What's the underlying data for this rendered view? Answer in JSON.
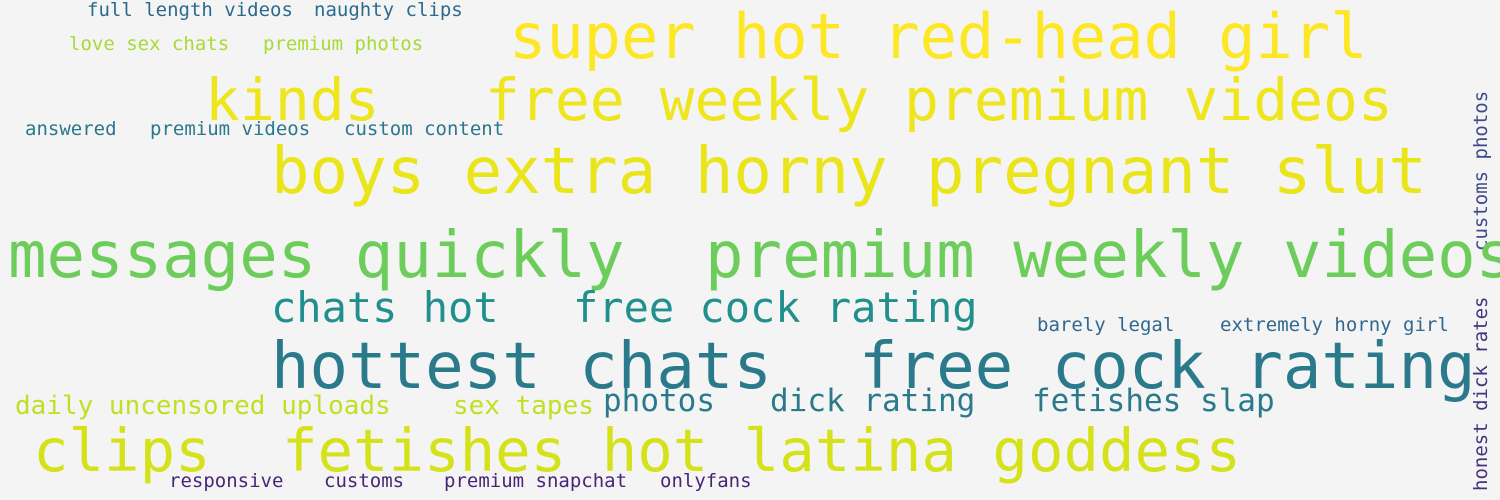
{
  "cloud": {
    "words": [
      {
        "text": "full length videos",
        "color": "#2c6a8d"
      },
      {
        "text": "naughty clips",
        "color": "#2c6a8d"
      },
      {
        "text": "love sex chats",
        "color": "#a6db35"
      },
      {
        "text": "premium photos",
        "color": "#a6db35"
      },
      {
        "text": "super hot red-head girl",
        "color": "#fde725"
      },
      {
        "text": "kinds",
        "color": "#eee51c"
      },
      {
        "text": "free weekly premium videos",
        "color": "#eee51c"
      },
      {
        "text": "answered",
        "color": "#2a778e"
      },
      {
        "text": "premium videos",
        "color": "#2a778e"
      },
      {
        "text": "custom content",
        "color": "#2a778e"
      },
      {
        "text": "boys extra horny pregnant slut",
        "color": "#eae51a"
      },
      {
        "text": "customs photos",
        "color": "#3e4a89"
      },
      {
        "text": "messages quickly",
        "color": "#6ccd5a"
      },
      {
        "text": "premium weekly videos",
        "color": "#6ccd5a"
      },
      {
        "text": "chats hot",
        "color": "#21908d"
      },
      {
        "text": "free cock rating",
        "color": "#21908d"
      },
      {
        "text": "barely legal",
        "color": "#31688e"
      },
      {
        "text": "extremely horny girl",
        "color": "#31688e"
      },
      {
        "text": "honest dick rates",
        "color": "#46337e"
      },
      {
        "text": "hottest chats",
        "color": "#2a7a8c"
      },
      {
        "text": "free cock rating",
        "color": "#2a7a8c"
      },
      {
        "text": "daily uncensored uploads",
        "color": "#c2df23"
      },
      {
        "text": "sex tapes",
        "color": "#c2df23"
      },
      {
        "text": "photos",
        "color": "#2a7a8c"
      },
      {
        "text": "dick rating",
        "color": "#2a7a8c"
      },
      {
        "text": "fetishes slap",
        "color": "#2a7a8c"
      },
      {
        "text": "clips",
        "color": "#d5e21a"
      },
      {
        "text": "fetishes hot latina goddess",
        "color": "#d5e21a"
      },
      {
        "text": "responsive",
        "color": "#482677"
      },
      {
        "text": "customs",
        "color": "#482677"
      },
      {
        "text": "premium snapchat",
        "color": "#482677"
      },
      {
        "text": "onlyfans",
        "color": "#482677"
      }
    ]
  }
}
